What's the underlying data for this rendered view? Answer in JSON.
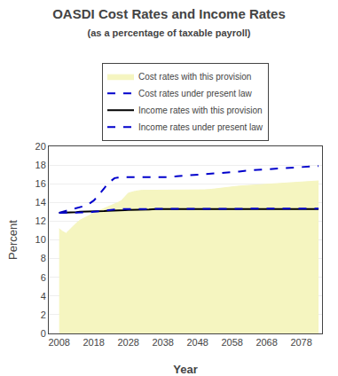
{
  "chart_data": {
    "type": "line",
    "title": "OASDI Cost Rates and Income Rates",
    "subtitle": "(as a percentage of taxable payroll)",
    "xlabel": "Year",
    "ylabel": "Percent",
    "x": [
      2008,
      2009,
      2010,
      2011,
      2012,
      2013,
      2014,
      2015,
      2016,
      2017,
      2018,
      2019,
      2020,
      2021,
      2022,
      2023,
      2024,
      2025,
      2026,
      2027,
      2028,
      2030,
      2032,
      2034,
      2036,
      2038,
      2040,
      2042,
      2044,
      2046,
      2048,
      2050,
      2052,
      2054,
      2056,
      2058,
      2060,
      2062,
      2064,
      2066,
      2068,
      2070,
      2072,
      2074,
      2076,
      2078,
      2080,
      2082,
      2083
    ],
    "xlim": [
      2005,
      2084
    ],
    "xticks": [
      2008,
      2018,
      2028,
      2038,
      2048,
      2058,
      2068,
      2078
    ],
    "ylim": [
      0.0,
      20.0
    ],
    "yticks": [
      0.0,
      2.0,
      4.0,
      6.0,
      8.0,
      10.0,
      12.0,
      14.0,
      16.0,
      18.0,
      20.0
    ],
    "grid": true,
    "legend": "top",
    "series": [
      {
        "name": "Cost rates with this provision",
        "type": "area",
        "color": "#f5f5c0",
        "line_style": "solid",
        "values": [
          11.2,
          10.9,
          10.7,
          11.1,
          11.5,
          11.8,
          12.1,
          12.3,
          12.5,
          12.7,
          12.9,
          13.05,
          13.2,
          13.35,
          13.5,
          13.65,
          13.8,
          14.0,
          14.2,
          14.6,
          15.0,
          15.2,
          15.3,
          15.3,
          15.3,
          15.3,
          15.3,
          15.3,
          15.3,
          15.3,
          15.3,
          15.35,
          15.4,
          15.5,
          15.6,
          15.7,
          15.75,
          15.8,
          15.85,
          15.9,
          15.95,
          16.0,
          16.05,
          16.1,
          16.15,
          16.2,
          16.25,
          16.3,
          16.3
        ]
      },
      {
        "name": "Cost rates under present law",
        "type": "line",
        "color": "#0000cc",
        "line_style": "dashed",
        "values": [
          12.9,
          13.0,
          13.1,
          13.2,
          13.3,
          13.4,
          13.5,
          13.6,
          13.7,
          13.95,
          14.2,
          14.6,
          15.0,
          15.5,
          16.0,
          16.3,
          16.6,
          16.65,
          16.7,
          16.7,
          16.7,
          16.7,
          16.7,
          16.7,
          16.7,
          16.7,
          16.7,
          16.8,
          16.85,
          16.9,
          16.95,
          17.0,
          17.05,
          17.1,
          17.15,
          17.2,
          17.3,
          17.4,
          17.45,
          17.5,
          17.55,
          17.6,
          17.65,
          17.7,
          17.75,
          17.8,
          17.85,
          17.9,
          17.9
        ]
      },
      {
        "name": "Income rates with this provision",
        "type": "line",
        "color": "#000000",
        "line_style": "solid",
        "values": [
          12.9,
          12.9,
          12.9,
          12.92,
          12.95,
          12.97,
          13.0,
          13.0,
          13.0,
          13.0,
          13.0,
          13.02,
          13.05,
          13.07,
          13.1,
          13.1,
          13.1,
          13.12,
          13.15,
          13.17,
          13.2,
          13.2,
          13.25,
          13.25,
          13.3,
          13.3,
          13.3,
          13.3,
          13.3,
          13.3,
          13.3,
          13.3,
          13.3,
          13.3,
          13.3,
          13.3,
          13.3,
          13.3,
          13.3,
          13.3,
          13.3,
          13.3,
          13.3,
          13.3,
          13.3,
          13.3,
          13.3,
          13.3,
          13.3
        ]
      },
      {
        "name": "Income rates under present law",
        "type": "line",
        "color": "#0000cc",
        "line_style": "dashed",
        "values": [
          12.9,
          12.9,
          12.9,
          12.9,
          12.9,
          12.9,
          12.9,
          12.9,
          12.9,
          12.95,
          13.0,
          13.05,
          13.1,
          13.15,
          13.2,
          13.25,
          13.25,
          13.27,
          13.3,
          13.3,
          13.3,
          13.3,
          13.3,
          13.3,
          13.35,
          13.35,
          13.35,
          13.35,
          13.35,
          13.35,
          13.35,
          13.35,
          13.35,
          13.35,
          13.35,
          13.35,
          13.35,
          13.35,
          13.35,
          13.35,
          13.35,
          13.35,
          13.35,
          13.35,
          13.35,
          13.35,
          13.35,
          13.35,
          13.35
        ]
      }
    ]
  }
}
